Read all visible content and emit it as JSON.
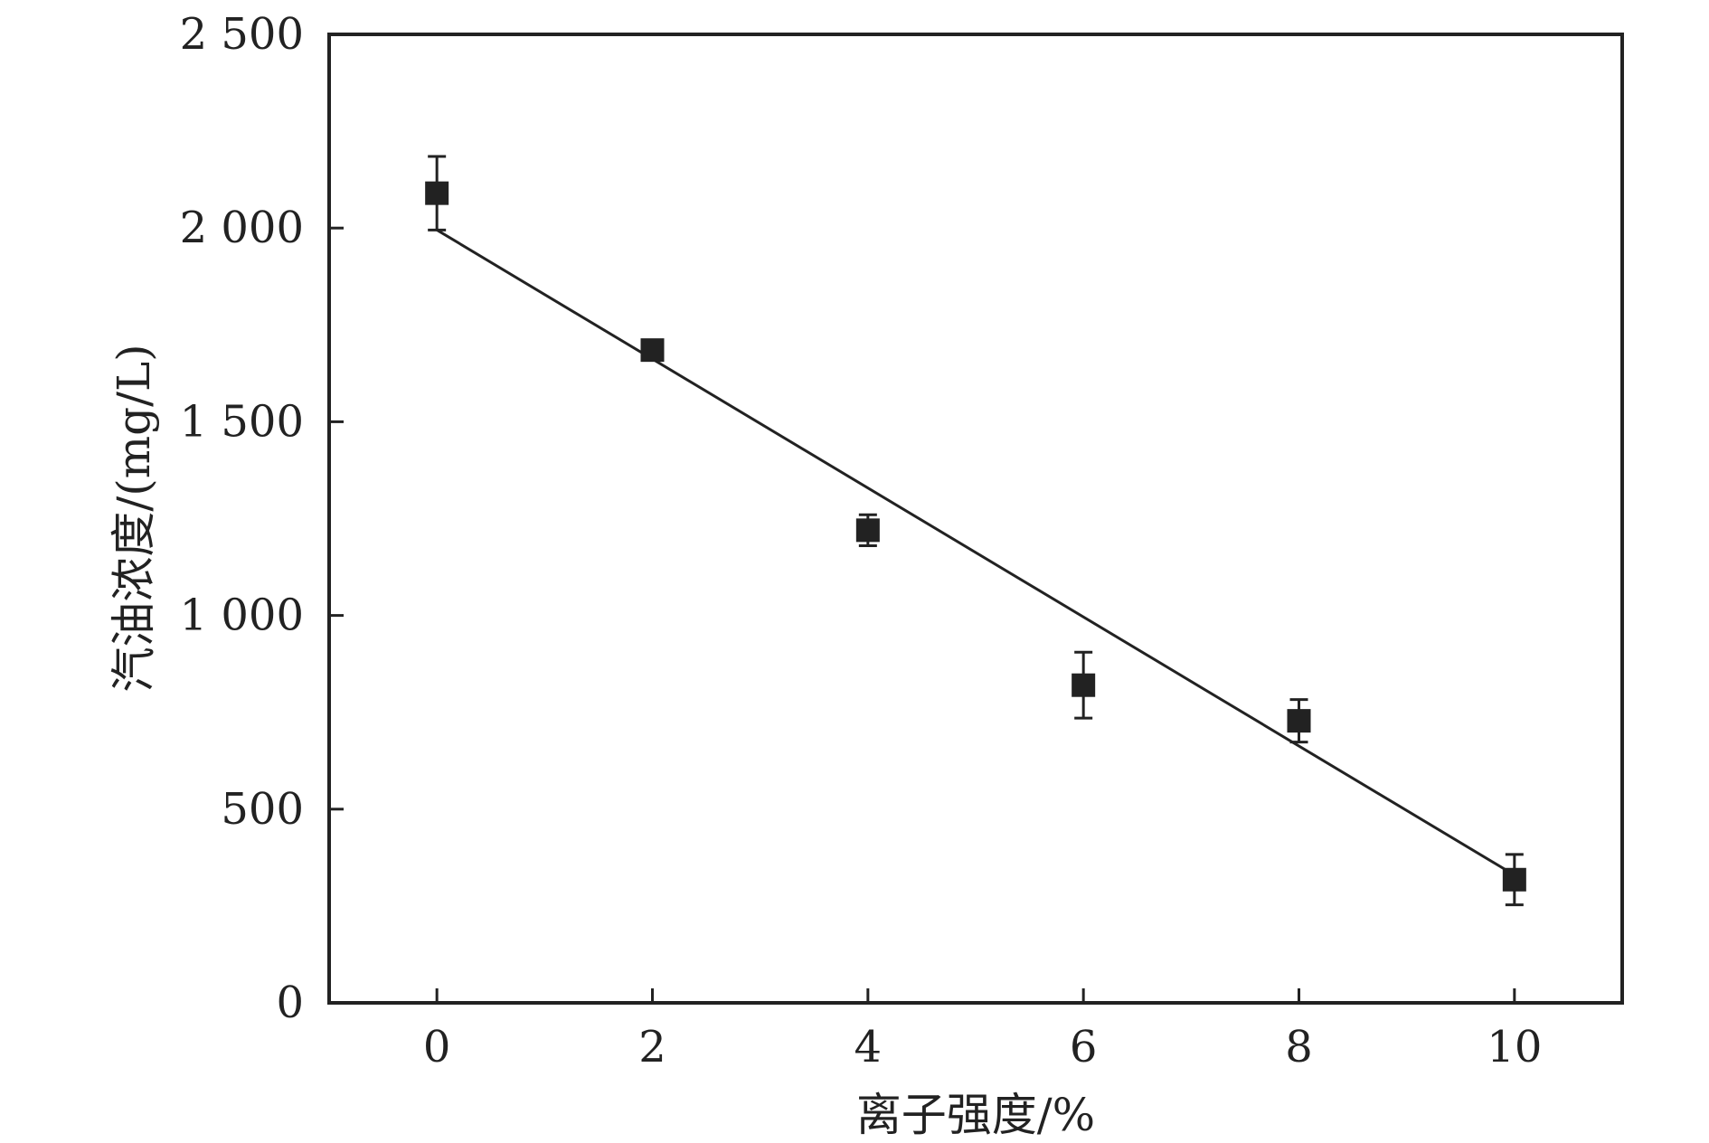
{
  "chart_data": {
    "type": "scatter",
    "xlabel": "离子强度/%",
    "ylabel": "汽油浓度/(mg/L)",
    "xlim": [
      -1,
      11
    ],
    "ylim": [
      0,
      2500
    ],
    "x_ticks": [
      0,
      2,
      4,
      6,
      8,
      10
    ],
    "y_ticks": [
      0,
      500,
      1000,
      1500,
      2000,
      2500
    ],
    "x_tick_labels": [
      "0",
      "2",
      "4",
      "6",
      "8",
      "10"
    ],
    "y_tick_labels": [
      "0",
      "500",
      "1 000",
      "1 500",
      "2 000",
      "2 500"
    ],
    "grid": false,
    "legend": "none",
    "series": [
      {
        "x": [
          0,
          2,
          4,
          6,
          8,
          10
        ],
        "y": [
          2090,
          1685,
          1220,
          820,
          728,
          318
        ],
        "error": [
          95,
          12,
          40,
          85,
          55,
          65
        ],
        "marker": "square",
        "color": "#222222"
      }
    ],
    "fit_line": {
      "x": [
        0,
        10
      ],
      "y": [
        1995,
        330
      ],
      "color": "#222222"
    }
  }
}
